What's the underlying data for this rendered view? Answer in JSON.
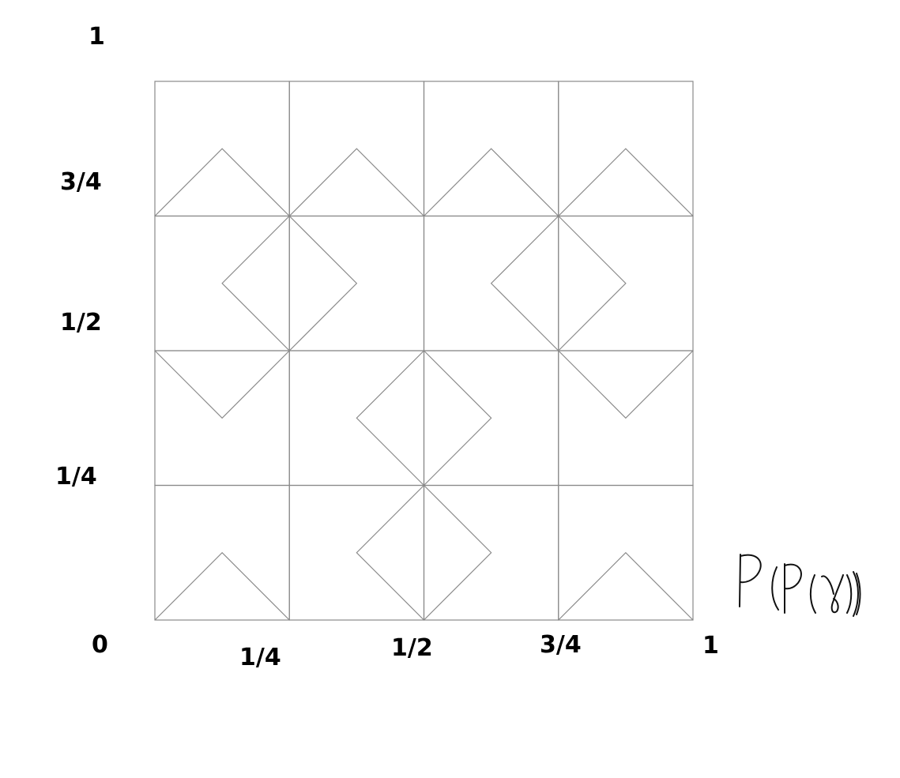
{
  "y_axis": {
    "labels": [
      "1",
      "3/4",
      "1/2",
      "1/4",
      "0"
    ]
  },
  "x_axis": {
    "labels": [
      "1/4",
      "1/2",
      "3/4",
      "1"
    ]
  },
  "grid": {
    "rows": 4,
    "cols": 4,
    "cells_top_to_bottom": [
      [
        "up",
        "up",
        "up",
        "up"
      ],
      [
        "left",
        "right",
        "left",
        "right"
      ],
      [
        "down",
        "left",
        "right",
        "down"
      ],
      [
        "up",
        "left",
        "right",
        "up"
      ]
    ]
  },
  "caption": {
    "text": "P(P(γ))",
    "handwritten": true
  }
}
